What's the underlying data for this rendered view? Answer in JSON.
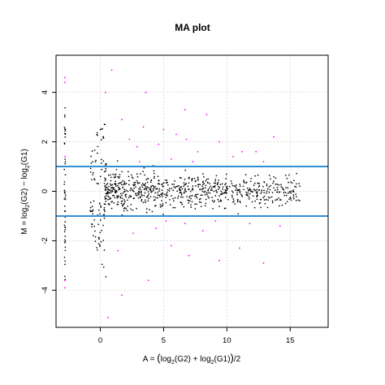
{
  "chart_data": {
    "type": "scatter",
    "title": "MA plot",
    "xlabel": "A = (log2(G2) + log2(G1))/2",
    "ylabel": "M = log2(G2) − log2(G1)",
    "xlim": [
      -3.5,
      18
    ],
    "ylim": [
      -5.5,
      5.5
    ],
    "x_ticks": [
      0,
      5,
      10,
      15
    ],
    "y_ticks": [
      -4,
      -2,
      0,
      2,
      4
    ],
    "grid": true,
    "thresholds": [
      1,
      -1
    ],
    "colors": {
      "normal": "#000000",
      "outlier": "#ff00ff",
      "threshold": "#2f8fd8",
      "grid": "#d3d3d3"
    },
    "points_per_unit": 1,
    "series": [
      {
        "colorKey": "outlier",
        "points": [
          [
            -2.8,
            4.6
          ],
          [
            -2.8,
            4.4
          ],
          [
            -2.8,
            1.4
          ],
          [
            -2.8,
            -3.9
          ],
          [
            -2.8,
            -3.6
          ],
          [
            0.9,
            4.9
          ],
          [
            0.4,
            4.0
          ],
          [
            3.6,
            4.0
          ],
          [
            8.4,
            3.1
          ],
          [
            6.7,
            3.3
          ],
          [
            3.4,
            2.6
          ],
          [
            5.0,
            2.5
          ],
          [
            6.0,
            2.3
          ],
          [
            1.7,
            2.9
          ],
          [
            2.3,
            2.1
          ],
          [
            4.6,
            1.9
          ],
          [
            6.8,
            2.1
          ],
          [
            7.7,
            1.6
          ],
          [
            11.2,
            1.6
          ],
          [
            12.3,
            1.6
          ],
          [
            13.7,
            2.2
          ],
          [
            9.4,
            2.0
          ],
          [
            2.9,
            1.8
          ],
          [
            5.6,
            1.3
          ],
          [
            7.3,
            1.2
          ],
          [
            10.5,
            1.4
          ],
          [
            12.9,
            1.2
          ],
          [
            2.6,
            -1.7
          ],
          [
            4.4,
            -1.5
          ],
          [
            6.7,
            -1.3
          ],
          [
            8.1,
            -1.6
          ],
          [
            11.8,
            -1.3
          ],
          [
            14.2,
            -1.4
          ],
          [
            5.6,
            -2.2
          ],
          [
            7.0,
            -2.6
          ],
          [
            9.4,
            -2.8
          ],
          [
            12.9,
            -2.9
          ],
          [
            3.8,
            -3.6
          ],
          [
            1.7,
            -4.2
          ],
          [
            0.6,
            -5.1
          ],
          [
            5.2,
            -1.2
          ],
          [
            9.1,
            -1.2
          ],
          [
            3.1,
            1.2
          ],
          [
            1.4,
            -2.4
          ],
          [
            11.0,
            -2.3
          ]
        ]
      }
    ]
  }
}
